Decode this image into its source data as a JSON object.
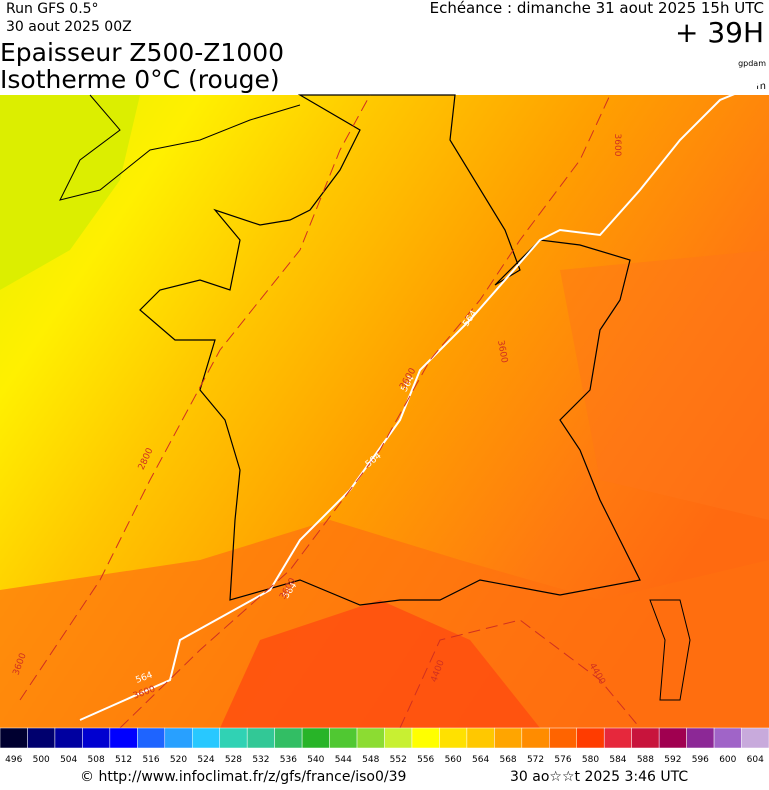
{
  "header": {
    "run": "Run GFS 0.5°",
    "run_date": "30 aout 2025 00Z",
    "valid": "Echéance : dimanche 31 aout 2025 15h UTC",
    "lead": "+ 39H",
    "title": "Epaisseur Z500-Z1000",
    "subtitle": "Isotherme 0°C (rouge)",
    "unit_main": "gpdam",
    "unit_iso": "m"
  },
  "map": {
    "contour_labels": {
      "thickness": [
        "564",
        "564",
        "564",
        "564",
        "564"
      ],
      "isotherm": [
        "3600",
        "3600",
        "3600",
        "2800",
        "3600",
        "4400",
        "4400",
        "3600",
        "3600"
      ]
    }
  },
  "legend": {
    "labels": [
      496,
      500,
      504,
      508,
      512,
      516,
      520,
      524,
      528,
      532,
      536,
      540,
      544,
      548,
      552,
      556,
      560,
      564,
      568,
      572,
      576,
      580,
      584,
      588,
      592,
      596,
      600,
      604
    ],
    "colors": [
      "#000030",
      "#00006e",
      "#0000a0",
      "#0000d0",
      "#0000ff",
      "#1e64ff",
      "#28a0ff",
      "#28c8ff",
      "#30d2b4",
      "#32c896",
      "#32be64",
      "#28b428",
      "#50c832",
      "#8cdc32",
      "#c8f032",
      "#ffff00",
      "#ffe100",
      "#ffc800",
      "#ffa500",
      "#ff8c00",
      "#ff6400",
      "#ff3c00",
      "#e6283c",
      "#c8143c",
      "#a00050",
      "#8c2896",
      "#a064c8",
      "#c8aadc"
    ]
  },
  "footer": {
    "url": "© http://www.infoclimat.fr/z/gfs/france/iso0/39",
    "generated": "30 ao☆☆t 2025  3:46 UTC"
  }
}
